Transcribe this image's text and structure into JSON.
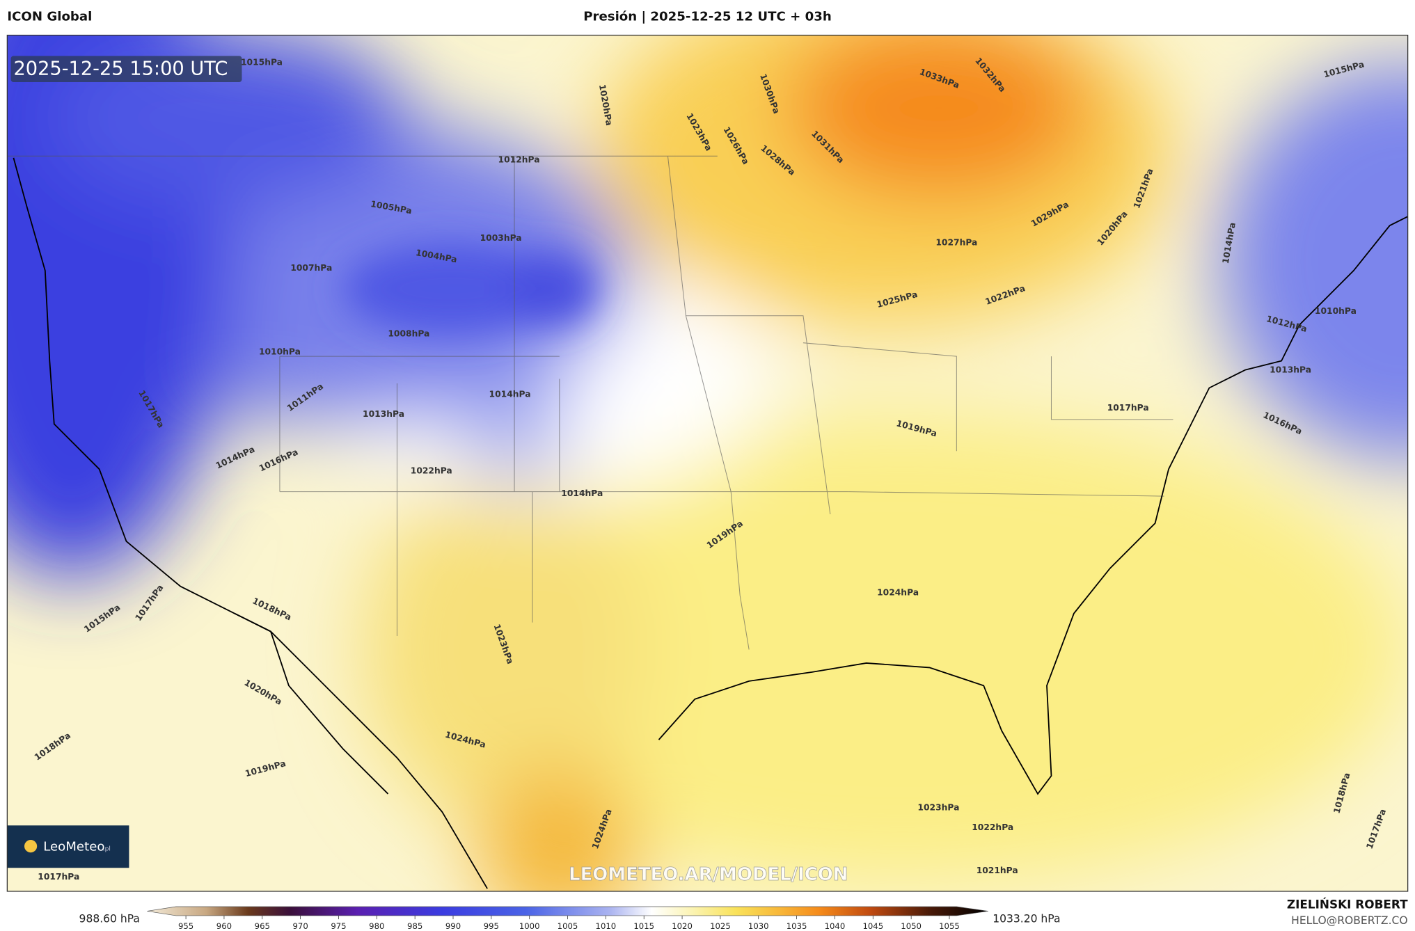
{
  "header": {
    "model": "ICON Global",
    "title": "Presión | 2025-12-25 12 UTC + 03h"
  },
  "map": {
    "timestamp": "2025-12-25 15:00 UTC",
    "watermark": "LEOMETEO.AR/MODEL/ICON",
    "logo": "LeoMeteo",
    "logo_suffix": ".pl",
    "isobar_labels": [
      "1033hPa",
      "1032hPa",
      "1029hPa",
      "1027hPa",
      "1025hPa",
      "1022hPa",
      "1019hPa",
      "1017hPa",
      "1016hPa",
      "1013hPa",
      "1010hPa",
      "1012hPa",
      "1024hPa",
      "1023hPa",
      "1022hPa",
      "1021hPa",
      "1019hPa",
      "1014hPa",
      "1013hPa",
      "1014hPa",
      "1022hPa",
      "1008hPa",
      "1005hPa",
      "1004hPa",
      "1003hPa",
      "1007hPa",
      "1012hPa",
      "1010hPa",
      "1011hPa",
      "1016hPa",
      "1014hPa",
      "1024hPa",
      "1020hPa",
      "1019hPa",
      "1018hPa",
      "1017hPa",
      "1015hPa",
      "1017hPa",
      "1018hPa",
      "1023hPa",
      "1020hPa",
      "1023hPa",
      "1026hPa",
      "1028hPa",
      "1030hPa",
      "1031hPa",
      "1021hPa",
      "1015hPa",
      "1014hPa",
      "1018hPa",
      "1017hPa",
      "1015hPa",
      "1017hPa",
      "1020hPa",
      "1024hPa"
    ]
  },
  "colorbar": {
    "min_label": "988.60 hPa",
    "max_label": "1033.20 hPa",
    "ticks": [
      955,
      960,
      965,
      970,
      975,
      980,
      985,
      990,
      995,
      1000,
      1005,
      1010,
      1015,
      1020,
      1025,
      1030,
      1035,
      1040,
      1045,
      1050,
      1055
    ]
  },
  "credits": {
    "author": "ZIELIŃSKI ROBERT",
    "contact": "HELLO@ROBERTZ.CO"
  }
}
